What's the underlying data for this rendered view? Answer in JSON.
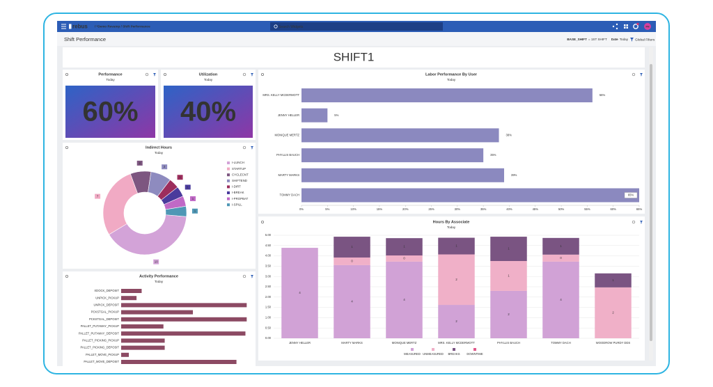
{
  "nav": {
    "brand": "rebus",
    "breadcrumb": "/ *Demo Revamp / Shift Performance",
    "search": "Search Widgets",
    "avatar": "PH"
  },
  "subheader": {
    "title": "Shift Performance",
    "filters": [
      {
        "name": "BASE_SHIFT",
        "value": "= 1ST SHIFT"
      },
      {
        "name": "Date",
        "value": "Today"
      }
    ],
    "global": "Global Filters"
  },
  "banner": "SHIFT1",
  "kpis": [
    {
      "title": "Performance",
      "subtitle": "Today",
      "value": "60%"
    },
    {
      "title": "Utilization",
      "subtitle": "Today",
      "value": "40%"
    }
  ],
  "charts": [
    {
      "type": "donut",
      "title": "Indirect Hours",
      "subtitle": "Today",
      "categories": [
        "I-LUNCH",
        "STARTUP",
        "CYCLECNT",
        "SHIFTEND",
        "I-DIRT",
        "I-BREAK",
        "I-PROPBAT",
        "I-SPILL"
      ],
      "values": [
        10,
        7,
        2,
        2,
        1,
        1,
        1,
        1
      ],
      "colors": [
        "#d3a3d8",
        "#f1aac4",
        "#7d5680",
        "#8e8bbf",
        "#9c2d5c",
        "#4a3b9c",
        "#c069c6",
        "#4f97b5"
      ]
    },
    {
      "type": "hbar",
      "title": "Labor Performance By User",
      "subtitle": "Today",
      "categories": [
        "MRS. KELLY MCDERMOTT",
        "JENNY HELLER",
        "MONIQUE MERTZ",
        "PHYLLIS BAUCH",
        "MARTY MARKS",
        "TOMMY DACH"
      ],
      "values": [
        56,
        5,
        38,
        35,
        39,
        65
      ],
      "value_labels": [
        "56%",
        "5%",
        "38%",
        "35%",
        "39%",
        "65%"
      ],
      "color": "#8b89bf",
      "xlim": [
        0,
        65
      ],
      "xticks": [
        {
          "value": 0,
          "label": "0%"
        },
        {
          "value": 5,
          "label": "5%"
        },
        {
          "value": 10,
          "label": "10%"
        },
        {
          "value": 15,
          "label": "15%"
        },
        {
          "value": 20,
          "label": "20%"
        },
        {
          "value": 25,
          "label": "25%"
        },
        {
          "value": 30,
          "label": "30%"
        },
        {
          "value": 35,
          "label": "35%"
        },
        {
          "value": 40,
          "label": "40%"
        },
        {
          "value": 45,
          "label": "45%"
        },
        {
          "value": 50,
          "label": "50%"
        },
        {
          "value": 55,
          "label": "55%"
        },
        {
          "value": 60,
          "label": "60%"
        },
        {
          "value": 65,
          "label": "65%"
        }
      ]
    },
    {
      "type": "stacked-bar",
      "title": "Hours By Associate",
      "subtitle": "Today",
      "categories": [
        "JENNY HELLER",
        "MARTY MARKS",
        "MONIQUE MERTZ",
        "MRS. KELLY MCDERMOTT",
        "PHYLLIS BAUCH",
        "TOMMY DACH",
        "WOODROW PURDY DDS"
      ],
      "series": [
        {
          "name": "MEASURED",
          "color": "#d1a2d6",
          "values": [
            4.39,
            3.55,
            3.72,
            1.62,
            2.3,
            3.72,
            0
          ],
          "value_labels": [
            "4",
            "4",
            "4",
            "2",
            "2",
            "4",
            null
          ]
        },
        {
          "name": "UNMEASURED",
          "color": "#f0b0c8",
          "values": [
            0,
            0.37,
            0.3,
            2.45,
            1.45,
            0.34,
            2.47
          ],
          "value_labels": [
            null,
            "0",
            "0",
            "2",
            "1",
            "0",
            "2"
          ]
        },
        {
          "name": "BREAKS",
          "color": "#7a5482",
          "values": [
            0,
            1.01,
            0.84,
            0.81,
            1.18,
            0.81,
            0.68
          ],
          "value_labels": [
            null,
            "1",
            "1",
            "1",
            "1",
            "1",
            "1"
          ]
        },
        {
          "name": "DOWNTIME",
          "color": "#e0588a",
          "values": [
            0,
            0,
            0,
            0,
            0,
            0,
            0
          ],
          "value_labels": [
            null,
            null,
            null,
            null,
            null,
            null,
            null
          ]
        }
      ],
      "ylim": [
        0,
        5
      ],
      "yticks": [
        {
          "value": 0,
          "label": "0.00"
        },
        {
          "value": 0.5,
          "label": "0.50"
        },
        {
          "value": 1,
          "label": "1.00"
        },
        {
          "value": 1.5,
          "label": "1.50"
        },
        {
          "value": 2,
          "label": "2.00"
        },
        {
          "value": 2.5,
          "label": "2.50"
        },
        {
          "value": 3,
          "label": "3.00"
        },
        {
          "value": 3.5,
          "label": "3.50"
        },
        {
          "value": 4,
          "label": "4.00"
        },
        {
          "value": 4.5,
          "label": "4.50"
        },
        {
          "value": 5,
          "label": "5.00"
        }
      ],
      "grid": true
    },
    {
      "type": "hbar-plain",
      "title": "Activity Performance",
      "subtitle": "Today",
      "categories": [
        "XDOCK_DEPOSIT",
        "UNPICK_PICKUP",
        "UNPICK_DEPOSIT",
        "PCKSTGAL_PICKUP",
        "PCKSTGAL_DEPOSIT",
        "PALLET_PUTAWAY_PICKUP",
        "PALLET_PUTAWAY_DEPOSIT",
        "PALLET_PICKING_PICKUP",
        "PALLET_PICKING_DEPOSIT",
        "PALLET_MOVE_PICKUP",
        "PALLET_MOVE_DEPOSIT"
      ],
      "values": [
        16,
        12,
        98,
        56,
        98,
        33,
        97,
        34,
        34,
        6,
        90
      ],
      "color": "#8c4a63",
      "xlim": [
        0,
        100
      ]
    }
  ]
}
